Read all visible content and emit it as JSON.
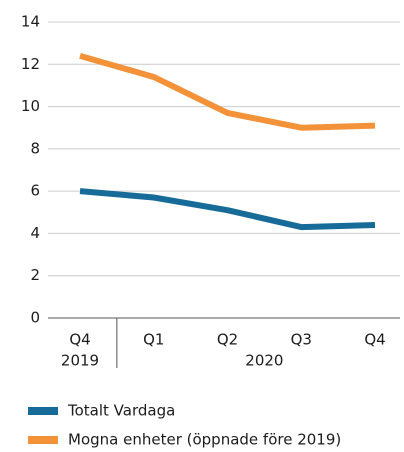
{
  "chart_data": {
    "type": "line",
    "categories": [
      "Q4",
      "Q1",
      "Q2",
      "Q3",
      "Q4"
    ],
    "category_groups": [
      {
        "name": "2019",
        "size": 1
      },
      {
        "name": "2020",
        "size": 4
      }
    ],
    "series": [
      {
        "name": "Totalt Vardaga",
        "color": "#176b99",
        "values": [
          6.0,
          5.7,
          5.1,
          4.3,
          4.4
        ]
      },
      {
        "name": "Mogna enheter (öppnade före 2019)",
        "color": "#f39239",
        "values": [
          12.4,
          11.4,
          9.7,
          9.0,
          9.1
        ]
      }
    ],
    "ylim": [
      0,
      14
    ],
    "yticks": [
      0,
      2,
      4,
      6,
      8,
      10,
      12,
      14
    ],
    "grid": true
  }
}
